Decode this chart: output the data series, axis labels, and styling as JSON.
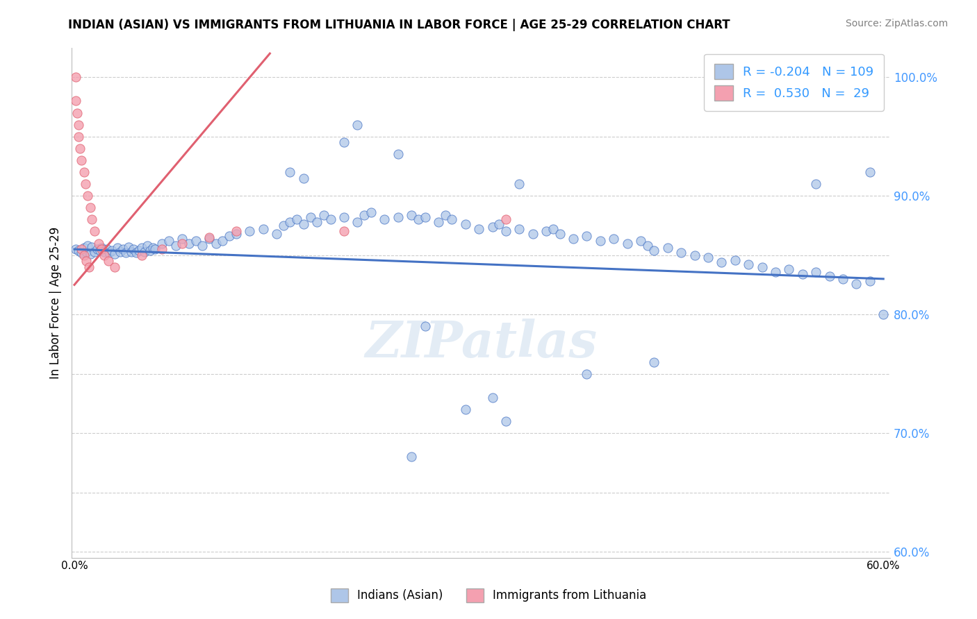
{
  "title": "INDIAN (ASIAN) VS IMMIGRANTS FROM LITHUANIA IN LABOR FORCE | AGE 25-29 CORRELATION CHART",
  "source": "Source: ZipAtlas.com",
  "ylabel": "In Labor Force | Age 25-29",
  "xlim": [
    -0.002,
    0.605
  ],
  "ylim": [
    0.595,
    1.025
  ],
  "xticks": [
    0.0,
    0.1,
    0.2,
    0.3,
    0.4,
    0.5,
    0.6
  ],
  "xtick_labels": [
    "0.0%",
    "",
    "",
    "",
    "",
    "",
    "60.0%"
  ],
  "yticks": [
    0.6,
    0.7,
    0.8,
    0.9,
    1.0
  ],
  "ytick_labels": [
    "60.0%",
    "70.0%",
    "80.0%",
    "90.0%",
    "100.0%"
  ],
  "legend_R1": "-0.204",
  "legend_N1": "109",
  "legend_R2": "0.530",
  "legend_N2": "29",
  "color_blue": "#aec6e8",
  "color_pink": "#f4a0b0",
  "line_blue": "#4472c4",
  "line_pink": "#e06070",
  "watermark": "ZIPatlas",
  "blue_scatter_x": [
    0.001,
    0.003,
    0.005,
    0.007,
    0.009,
    0.01,
    0.012,
    0.013,
    0.015,
    0.017,
    0.019,
    0.02,
    0.022,
    0.024,
    0.026,
    0.028,
    0.03,
    0.032,
    0.034,
    0.036,
    0.038,
    0.04,
    0.042,
    0.044,
    0.046,
    0.048,
    0.05,
    0.052,
    0.054,
    0.056,
    0.058,
    0.06,
    0.065,
    0.07,
    0.075,
    0.08,
    0.085,
    0.09,
    0.095,
    0.1,
    0.105,
    0.11,
    0.115,
    0.12,
    0.13,
    0.14,
    0.15,
    0.155,
    0.16,
    0.165,
    0.17,
    0.175,
    0.18,
    0.185,
    0.19,
    0.2,
    0.21,
    0.215,
    0.22,
    0.23,
    0.24,
    0.25,
    0.255,
    0.26,
    0.27,
    0.275,
    0.28,
    0.29,
    0.3,
    0.31,
    0.315,
    0.32,
    0.33,
    0.34,
    0.35,
    0.355,
    0.36,
    0.37,
    0.38,
    0.39,
    0.4,
    0.41,
    0.42,
    0.425,
    0.43,
    0.44,
    0.45,
    0.46,
    0.47,
    0.48,
    0.49,
    0.5,
    0.51,
    0.52,
    0.53,
    0.54,
    0.55,
    0.56,
    0.57,
    0.58,
    0.59,
    0.6,
    0.38,
    0.31,
    0.43,
    0.29,
    0.26,
    0.25,
    0.32
  ],
  "blue_scatter_y": [
    0.855,
    0.854,
    0.852,
    0.856,
    0.853,
    0.858,
    0.851,
    0.857,
    0.853,
    0.855,
    0.854,
    0.856,
    0.853,
    0.855,
    0.852,
    0.854,
    0.851,
    0.856,
    0.853,
    0.855,
    0.852,
    0.857,
    0.853,
    0.855,
    0.852,
    0.854,
    0.856,
    0.853,
    0.858,
    0.854,
    0.856,
    0.855,
    0.86,
    0.862,
    0.858,
    0.864,
    0.86,
    0.862,
    0.858,
    0.864,
    0.86,
    0.862,
    0.866,
    0.868,
    0.87,
    0.872,
    0.868,
    0.875,
    0.878,
    0.88,
    0.876,
    0.882,
    0.878,
    0.884,
    0.88,
    0.882,
    0.878,
    0.884,
    0.886,
    0.88,
    0.882,
    0.884,
    0.88,
    0.882,
    0.878,
    0.884,
    0.88,
    0.876,
    0.872,
    0.874,
    0.876,
    0.87,
    0.872,
    0.868,
    0.87,
    0.872,
    0.868,
    0.864,
    0.866,
    0.862,
    0.864,
    0.86,
    0.862,
    0.858,
    0.854,
    0.856,
    0.852,
    0.85,
    0.848,
    0.844,
    0.846,
    0.842,
    0.84,
    0.836,
    0.838,
    0.834,
    0.836,
    0.832,
    0.83,
    0.826,
    0.828,
    0.8,
    0.75,
    0.73,
    0.76,
    0.72,
    0.79,
    0.68,
    0.71
  ],
  "blue_scatter_x_high": [
    0.16,
    0.17,
    0.2,
    0.21,
    0.24,
    0.33,
    0.55,
    0.59
  ],
  "blue_scatter_y_high": [
    0.92,
    0.915,
    0.945,
    0.96,
    0.935,
    0.91,
    0.91,
    0.92
  ],
  "pink_scatter_x": [
    0.001,
    0.001,
    0.002,
    0.003,
    0.003,
    0.004,
    0.005,
    0.007,
    0.008,
    0.01,
    0.012,
    0.013,
    0.015,
    0.018,
    0.02,
    0.022,
    0.025,
    0.03,
    0.05,
    0.065,
    0.08,
    0.1,
    0.12,
    0.2,
    0.32,
    0.005,
    0.007,
    0.009,
    0.011
  ],
  "pink_scatter_y": [
    1.0,
    0.98,
    0.97,
    0.96,
    0.95,
    0.94,
    0.93,
    0.92,
    0.91,
    0.9,
    0.89,
    0.88,
    0.87,
    0.86,
    0.855,
    0.85,
    0.845,
    0.84,
    0.85,
    0.855,
    0.86,
    0.865,
    0.87,
    0.87,
    0.88,
    0.855,
    0.85,
    0.845,
    0.84
  ]
}
